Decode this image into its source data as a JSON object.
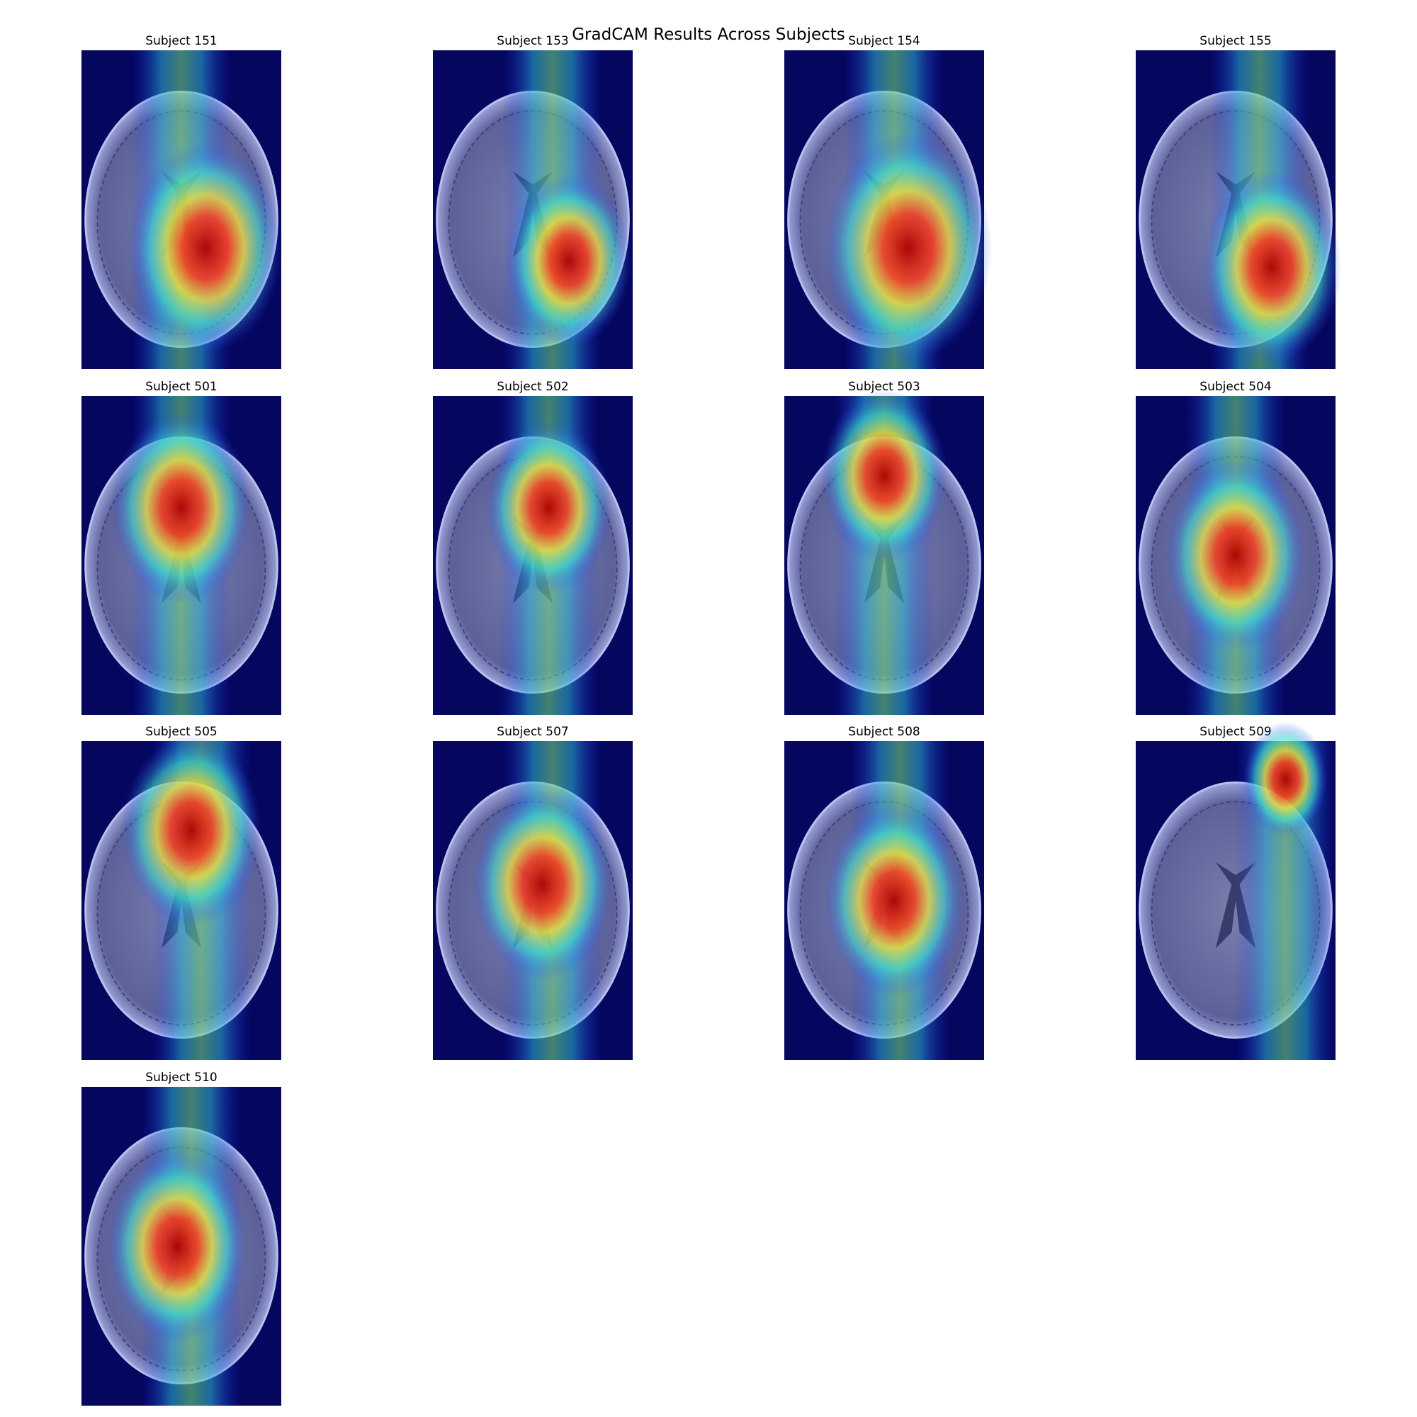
{
  "title": "GradCAM Results Across Subjects",
  "panels": [
    "Subject 151",
    "Subject 153",
    "Subject 154",
    "Subject 155",
    "Subject 501",
    "Subject 502",
    "Subject 503",
    "Subject 504",
    "Subject 505",
    "Subject 507",
    "Subject 508",
    "Subject 509",
    "Subject 510"
  ]
}
